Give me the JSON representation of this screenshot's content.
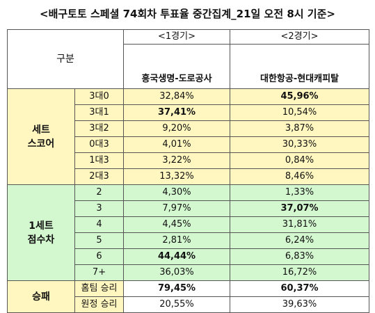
{
  "title": "<배구토토 스페셜 74회차 투표율 중간집계_21일 오전 8시 기준>",
  "header": {
    "gubun": "구분",
    "game1": "<1경기>",
    "game2": "<2경기>",
    "team1": "흥국생명-도로공사",
    "team2": "대한항공-현대캐피탈"
  },
  "set_score": {
    "group_label": "세트\n스코어",
    "rows": [
      {
        "label": "3대0",
        "v1": "32,84%",
        "v2": "45,96%",
        "b1": false,
        "b2": true
      },
      {
        "label": "3대1",
        "v1": "37,41%",
        "v2": "10,54%",
        "b1": true,
        "b2": false
      },
      {
        "label": "3대2",
        "v1": "9,20%",
        "v2": "3,87%",
        "b1": false,
        "b2": false
      },
      {
        "label": "0대3",
        "v1": "4,01%",
        "v2": "30,33%",
        "b1": false,
        "b2": false
      },
      {
        "label": "1대3",
        "v1": "3,22%",
        "v2": "0,84%",
        "b1": false,
        "b2": false
      },
      {
        "label": "2대3",
        "v1": "13,32%",
        "v2": "8,46%",
        "b1": false,
        "b2": false
      }
    ]
  },
  "set1_diff": {
    "group_label": "1세트\n점수차",
    "rows": [
      {
        "label": "2",
        "v1": "4,30%",
        "v2": "1,33%",
        "b1": false,
        "b2": false
      },
      {
        "label": "3",
        "v1": "7,97%",
        "v2": "37,07%",
        "b1": false,
        "b2": true
      },
      {
        "label": "4",
        "v1": "4,45%",
        "v2": "31,81%",
        "b1": false,
        "b2": false
      },
      {
        "label": "5",
        "v1": "2,81%",
        "v2": "6,24%",
        "b1": false,
        "b2": false
      },
      {
        "label": "6",
        "v1": "44,44%",
        "v2": "6,83%",
        "b1": true,
        "b2": false
      },
      {
        "label": "7+",
        "v1": "36,03%",
        "v2": "16,72%",
        "b1": false,
        "b2": false
      }
    ]
  },
  "result": {
    "group_label": "승패",
    "rows": [
      {
        "label": "홈팀 승리",
        "v1": "79,45%",
        "v2": "60,37%",
        "b1": true,
        "b2": true
      },
      {
        "label": "원정 승리",
        "v1": "20,55%",
        "v2": "39,63%",
        "b1": false,
        "b2": false
      }
    ]
  },
  "colors": {
    "set_score_bg": "#fff7bf",
    "set1_diff_bg": "#d3f7cf",
    "result_bg": "#ffffff"
  }
}
